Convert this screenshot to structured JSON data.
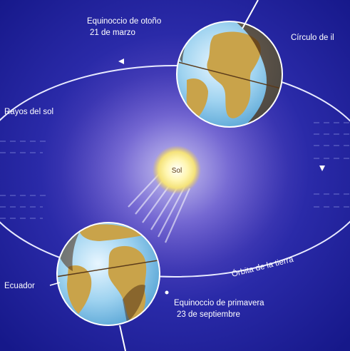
{
  "labels": {
    "autumn_equinox": "Equinoccio de otoño",
    "autumn_date": "21 de marzo",
    "circle": "Círculo de il",
    "sun_rays": "Rayos del sol",
    "sun": "Sol",
    "orbit": "Órbita de la tierra",
    "equator": "Ecuador",
    "spring_equinox": "Equinoccio de primavera",
    "spring_date": "23 de septiembre"
  },
  "colors": {
    "background": "#1a1f8f",
    "sun_glow": "#fff6b0",
    "ocean": "#7fc3e8",
    "land": "#c9a34a",
    "night": "#4a2a10"
  }
}
